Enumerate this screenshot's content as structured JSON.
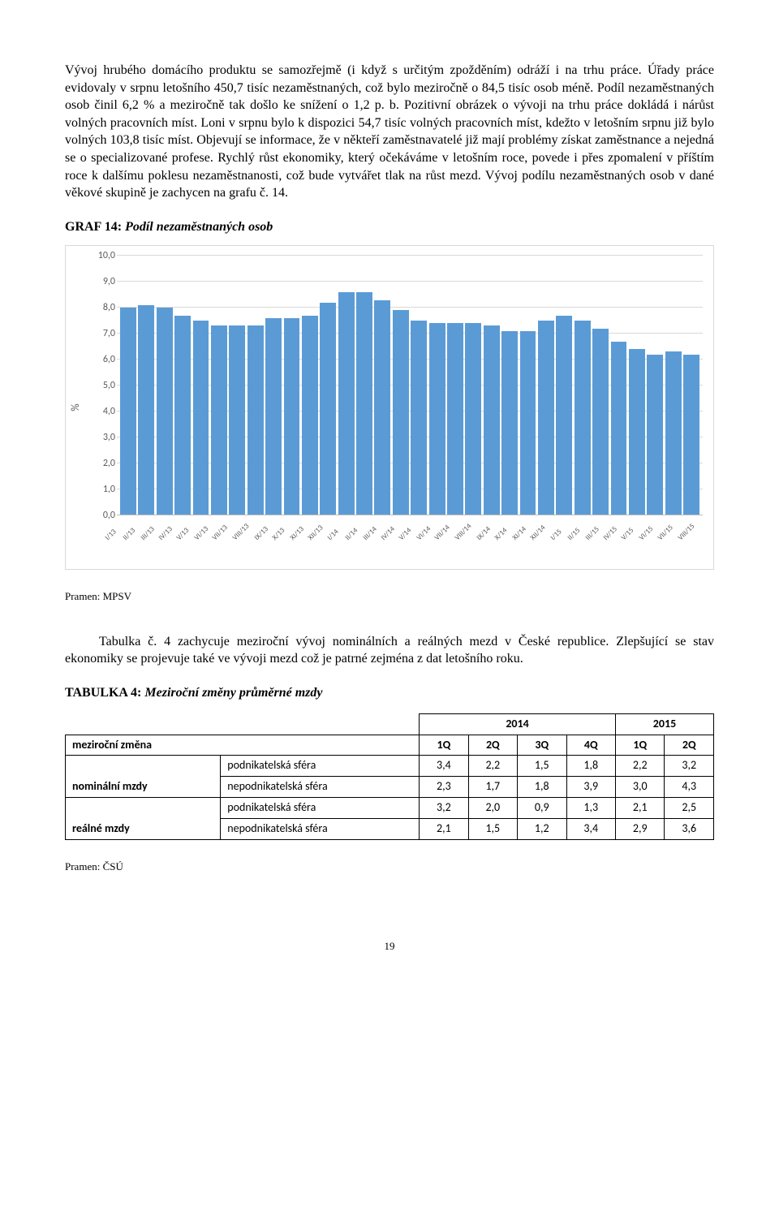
{
  "para1": "Vývoj hrubého domácího produktu se samozřejmě (i když s určitým zpožděním) odráží i na trhu práce. Úřady práce evidovaly v srpnu letošního 450,7 tisíc nezaměstnaných, což bylo meziročně o 84,5 tisíc osob méně. Podíl nezaměstnaných osob činil 6,2 % a meziročně tak došlo ke snížení o 1,2 p. b. Pozitivní obrázek o vývoji na trhu práce dokládá i nárůst volných pracovních míst. Loni v srpnu bylo k dispozici 54,7 tisíc volných pracovních míst, kdežto v letošním srpnu již bylo volných 103,8 tisíc míst. Objevují se informace, že v někteří zaměstnavatelé již mají problémy získat zaměstnance a nejedná se o specializované profese. Rychlý růst ekonomiky, který očekáváme v letošním roce, povede i přes zpomalení v příštím roce k dalšímu poklesu nezaměstnanosti, což bude vytvářet tlak na růst mezd. Vývoj podílu nezaměstnaných osob v dané věkové skupině je zachycen na grafu č. 14.",
  "graf14": {
    "label": "GRAF 14:",
    "name": "Podíl nezaměstnaných osob",
    "y_label": "%",
    "y_max": 10.0,
    "y_step": 1.0,
    "y_ticks": [
      "0,0",
      "1,0",
      "2,0",
      "3,0",
      "4,0",
      "5,0",
      "6,0",
      "7,0",
      "8,0",
      "9,0",
      "10,0"
    ],
    "bar_color": "#5b9bd5",
    "grid_color": "#d9d9d9",
    "categories": [
      "I/13",
      "II/13",
      "III/13",
      "IV/13",
      "V/13",
      "VI/13",
      "VII/13",
      "VIII/13",
      "IX/13",
      "X/13",
      "XI/13",
      "XII/13",
      "I/14",
      "II/14",
      "III/14",
      "IV/14",
      "V/14",
      "VI/14",
      "VII/14",
      "VIII/14",
      "IX/14",
      "X/14",
      "XI/14",
      "XII/14",
      "I/15",
      "II/15",
      "III/15",
      "IV/15",
      "V/15",
      "VI/15",
      "VII/15",
      "VIII/15"
    ],
    "values": [
      8.0,
      8.1,
      8.0,
      7.7,
      7.5,
      7.3,
      7.3,
      7.3,
      7.6,
      7.6,
      7.7,
      8.2,
      8.6,
      8.6,
      8.3,
      7.9,
      7.5,
      7.4,
      7.4,
      7.4,
      7.3,
      7.1,
      7.1,
      7.5,
      7.7,
      7.5,
      7.2,
      6.7,
      6.4,
      6.2,
      6.3,
      6.2
    ]
  },
  "pramen1": "Pramen: MPSV",
  "para2": "Tabulka č. 4 zachycuje meziroční vývoj nominálních a reálných mezd v České republice. Zlepšující se stav ekonomiky se projevuje také ve vývoji mezd což je patrné zejména z dat letošního roku.",
  "tab4": {
    "label": "TABULKA 4:",
    "name": "Meziroční změny průměrné mzdy",
    "year_headers": [
      "2014",
      "2015"
    ],
    "q_headers": [
      "1Q",
      "2Q",
      "3Q",
      "4Q",
      "1Q",
      "2Q"
    ],
    "row_header": "meziroční změna",
    "groups": [
      {
        "group_label": "nominální mzdy",
        "rows": [
          {
            "label": "podnikatelská sféra",
            "vals": [
              "3,4",
              "2,2",
              "1,5",
              "1,8",
              "2,2",
              "3,2"
            ]
          },
          {
            "label": "nepodnikatelská sféra",
            "vals": [
              "2,3",
              "1,7",
              "1,8",
              "3,9",
              "3,0",
              "4,3"
            ]
          }
        ]
      },
      {
        "group_label": "reálné mzdy",
        "rows": [
          {
            "label": "podnikatelská sféra",
            "vals": [
              "3,2",
              "2,0",
              "0,9",
              "1,3",
              "2,1",
              "2,5"
            ]
          },
          {
            "label": "nepodnikatelská sféra",
            "vals": [
              "2,1",
              "1,5",
              "1,2",
              "3,4",
              "2,9",
              "3,6"
            ]
          }
        ]
      }
    ]
  },
  "pramen2": "Pramen: ČSÚ",
  "page_num": "19"
}
